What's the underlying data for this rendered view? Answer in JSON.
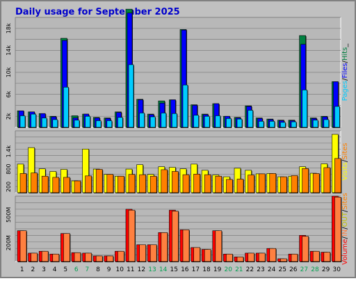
{
  "title": "Daily usage for September 2025",
  "colors": {
    "background": "#C0C0C0",
    "plot": "#B8B8B8",
    "title": "#0000CC",
    "pages": "#00CCFF",
    "files": "#0000FF",
    "hits": "#008040",
    "visits": "#FFFF00",
    "sites": "#FF8000",
    "kbytes": "#FF0000",
    "in_out": "#FF8040",
    "label_normal": "#000000",
    "label_weekend": "#00A050"
  },
  "chart_data": [
    {
      "type": "bar",
      "name": "hits-files-pages",
      "categories": [
        "1",
        "2",
        "3",
        "4",
        "5",
        "6",
        "7",
        "8",
        "9",
        "10",
        "11",
        "12",
        "13",
        "14",
        "15",
        "16",
        "17",
        "18",
        "19",
        "20",
        "21",
        "22",
        "23",
        "24",
        "25",
        "26",
        "27",
        "28",
        "29",
        "30"
      ],
      "weekend_days": [
        6,
        7,
        13,
        14,
        20,
        21,
        27,
        28
      ],
      "yticks": [
        "2k",
        "6k",
        "10k",
        "14k",
        "18k"
      ],
      "ytick_values": [
        2000,
        6000,
        10000,
        14000,
        18000
      ],
      "ylim": [
        0,
        20000
      ],
      "ylabel_parts": [
        "Pages",
        "/",
        "Files",
        "/",
        "Hits",
        "_"
      ],
      "series": [
        {
          "name": "Hits",
          "values": [
            3000,
            2800,
            2500,
            2000,
            16200,
            2100,
            2400,
            1800,
            1700,
            2800,
            21500,
            5100,
            2400,
            4800,
            5000,
            17800,
            4100,
            2400,
            4300,
            2000,
            1800,
            3900,
            1700,
            1500,
            1300,
            1300,
            16700,
            1700,
            2000,
            8300
          ]
        },
        {
          "name": "Files",
          "values": [
            3000,
            2800,
            2500,
            1900,
            15800,
            1700,
            2400,
            1700,
            1600,
            2700,
            20800,
            5000,
            2300,
            4400,
            5000,
            17700,
            4000,
            2300,
            4300,
            2000,
            1700,
            3800,
            1600,
            1400,
            1200,
            1200,
            15100,
            1600,
            1900,
            8300
          ]
        },
        {
          "name": "Pages",
          "values": [
            2100,
            2400,
            1700,
            1400,
            7300,
            1300,
            2000,
            1200,
            1200,
            1800,
            11400,
            2600,
            1900,
            2600,
            2500,
            7700,
            2200,
            2000,
            2100,
            1600,
            1500,
            3100,
            1100,
            1100,
            900,
            1000,
            6800,
            1300,
            1400,
            3800
          ]
        }
      ]
    },
    {
      "type": "bar",
      "name": "visits-sites",
      "categories": [
        "1",
        "2",
        "3",
        "4",
        "5",
        "6",
        "7",
        "8",
        "9",
        "10",
        "11",
        "12",
        "13",
        "14",
        "15",
        "16",
        "17",
        "18",
        "19",
        "20",
        "21",
        "22",
        "23",
        "24",
        "25",
        "26",
        "27",
        "28",
        "29",
        "30"
      ],
      "yticks": [
        "200",
        "800",
        "1.4k"
      ],
      "ytick_values": [
        200,
        800,
        1400
      ],
      "ylim": [
        0,
        2100
      ],
      "ylabel_parts": [
        "Visits",
        "/",
        "Sites"
      ],
      "series": [
        {
          "name": "Visits",
          "values": [
            970,
            1530,
            810,
            720,
            790,
            400,
            1480,
            800,
            620,
            560,
            800,
            950,
            620,
            880,
            860,
            810,
            970,
            760,
            600,
            540,
            830,
            760,
            640,
            650,
            540,
            560,
            880,
            660,
            980,
            1980
          ]
        },
        {
          "name": "Sites",
          "values": [
            650,
            670,
            560,
            520,
            520,
            400,
            570,
            790,
            620,
            560,
            620,
            610,
            560,
            780,
            720,
            610,
            630,
            610,
            560,
            450,
            460,
            600,
            640,
            650,
            540,
            580,
            820,
            650,
            850,
            1160
          ]
        }
      ]
    },
    {
      "type": "bar",
      "name": "volume",
      "categories": [
        "1",
        "2",
        "3",
        "4",
        "5",
        "6",
        "7",
        "8",
        "9",
        "10",
        "11",
        "12",
        "13",
        "14",
        "15",
        "16",
        "17",
        "18",
        "19",
        "20",
        "21",
        "22",
        "23",
        "24",
        "25",
        "26",
        "27",
        "28",
        "29",
        "30"
      ],
      "yticks": [
        "200M",
        "500M"
      ],
      "ytick_values": [
        200,
        500
      ],
      "ylim": [
        0,
        700
      ],
      "ylabel_parts": [
        "Volume",
        "/",
        "IN",
        "/",
        "OUT",
        "/",
        "Sites"
      ],
      "series": [
        {
          "name": "Volume",
          "values": [
            330,
            90,
            110,
            80,
            300,
            95,
            90,
            60,
            60,
            110,
            560,
            180,
            180,
            310,
            550,
            340,
            150,
            130,
            330,
            80,
            50,
            90,
            90,
            140,
            30,
            80,
            280,
            110,
            100,
            700
          ]
        },
        {
          "name": "Out",
          "values": [
            330,
            90,
            110,
            80,
            300,
            95,
            90,
            60,
            60,
            110,
            550,
            180,
            180,
            310,
            540,
            340,
            150,
            130,
            330,
            80,
            50,
            90,
            90,
            140,
            30,
            80,
            270,
            110,
            100,
            690
          ]
        }
      ]
    }
  ]
}
